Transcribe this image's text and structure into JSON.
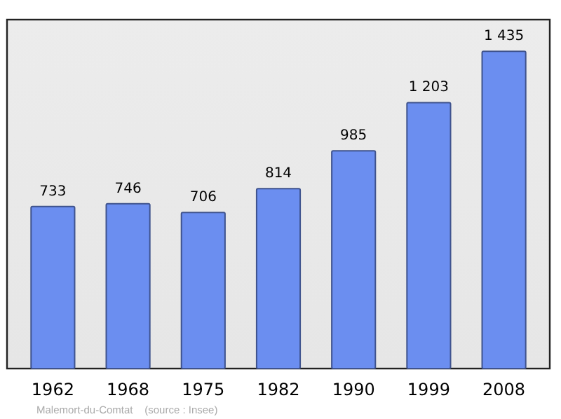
{
  "chart_data": {
    "type": "bar",
    "categories": [
      "1962",
      "1968",
      "1975",
      "1982",
      "1990",
      "1999",
      "2008"
    ],
    "values": [
      733,
      746,
      706,
      814,
      985,
      1203,
      1435
    ],
    "value_labels": [
      "733",
      "746",
      "706",
      "814",
      "985",
      "1 203",
      "1 435"
    ],
    "color": "#6b8ef0",
    "annotations": [
      "Malemort-du-Comtat    (source : Insee)"
    ]
  }
}
